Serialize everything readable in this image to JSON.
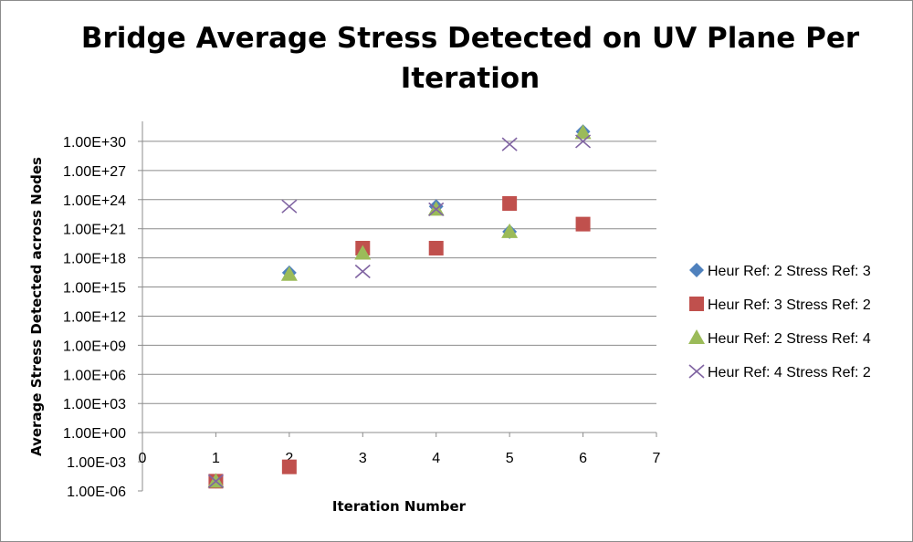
{
  "chart_data": {
    "type": "scatter",
    "title": "Bridge  Average Stress Detected on UV Plane Per Iteration",
    "title_lines": [
      "Bridge  Average Stress Detected on UV Plane Per",
      "Iteration"
    ],
    "xlabel": "Iteration Number",
    "ylabel": "Average Stress Detected across Nodes",
    "xlim": [
      0,
      7
    ],
    "x_ticks": [
      "0",
      "1",
      "2",
      "3",
      "4",
      "5",
      "6",
      "7"
    ],
    "y_scale": "log10",
    "ylim": [
      1e-06,
      1e+33
    ],
    "y_ticks": [
      "1.00E-06",
      "1.00E-03",
      "1.00E+00",
      "1.00E+03",
      "1.00E+06",
      "1.00E+09",
      "1.00E+12",
      "1.00E+15",
      "1.00E+18",
      "1.00E+21",
      "1.00E+24",
      "1.00E+27",
      "1.00E+30"
    ],
    "grid": "horizontal major gridlines",
    "legend_position": "right",
    "series": [
      {
        "name": "Heur Ref: 2 Stress Ref: 3",
        "marker": "diamond",
        "color": "#4f81bd",
        "x": [
          1,
          2,
          4,
          5,
          6
        ],
        "y": [
          1e-05,
          3e+16,
          2e+23,
          5e+20,
          1e+31
        ]
      },
      {
        "name": "Heur Ref: 3 Stress Ref: 2",
        "marker": "square",
        "color": "#c0504d",
        "x": [
          1,
          2,
          3,
          4,
          5,
          6
        ],
        "y": [
          1e-05,
          0.0003,
          1e+19,
          1e+19,
          4e+23,
          3e+21
        ]
      },
      {
        "name": "Heur Ref: 2 Stress Ref: 4",
        "marker": "triangle",
        "color": "#9bbb59",
        "x": [
          1,
          2,
          3,
          4,
          5,
          6
        ],
        "y": [
          1e-05,
          2e+16,
          3e+18,
          1e+23,
          5e+20,
          8e+30
        ]
      },
      {
        "name": "Heur Ref: 4 Stress Ref: 2",
        "marker": "x",
        "color": "#8064a2",
        "x": [
          1,
          2,
          3,
          4,
          5,
          6
        ],
        "y": [
          1e-05,
          2e+23,
          4e+16,
          1e+23,
          5e+29,
          1e+30
        ]
      }
    ]
  }
}
